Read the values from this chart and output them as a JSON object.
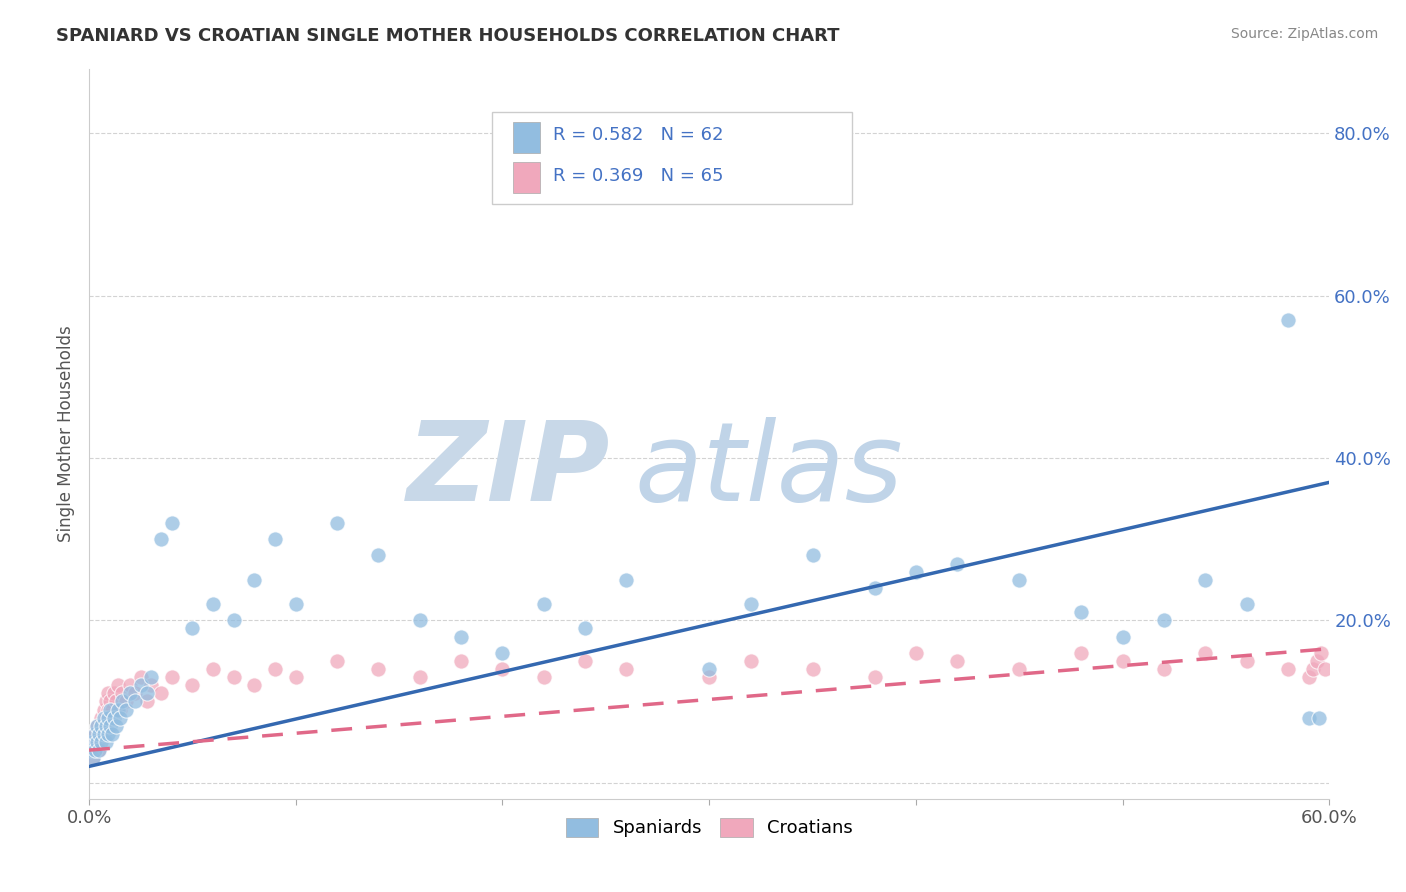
{
  "title": "SPANIARD VS CROATIAN SINGLE MOTHER HOUSEHOLDS CORRELATION CHART",
  "source_text": "Source: ZipAtlas.com",
  "ylabel": "Single Mother Households",
  "legend_entries": [
    {
      "label": "R = 0.582   N = 62",
      "color": "#aac4e0"
    },
    {
      "label": "R = 0.369   N = 65",
      "color": "#f4b0c0"
    }
  ],
  "spaniards_color": "#92bde0",
  "croatians_color": "#f0a8bc",
  "spaniard_line_color": "#3468b0",
  "croatian_line_color": "#e06888",
  "watermark_zip_color": "#c8d8e8",
  "watermark_atlas_color": "#c0d4e8",
  "watermark_text_zip": "ZIP",
  "watermark_text_atlas": "atlas",
  "spaniards_x": [
    0.001,
    0.002,
    0.002,
    0.003,
    0.003,
    0.004,
    0.004,
    0.005,
    0.005,
    0.006,
    0.006,
    0.007,
    0.007,
    0.008,
    0.008,
    0.009,
    0.009,
    0.01,
    0.01,
    0.011,
    0.012,
    0.013,
    0.014,
    0.015,
    0.016,
    0.018,
    0.02,
    0.022,
    0.025,
    0.028,
    0.03,
    0.035,
    0.04,
    0.05,
    0.06,
    0.07,
    0.08,
    0.09,
    0.1,
    0.12,
    0.14,
    0.16,
    0.18,
    0.2,
    0.22,
    0.24,
    0.26,
    0.3,
    0.32,
    0.35,
    0.38,
    0.4,
    0.42,
    0.45,
    0.48,
    0.5,
    0.52,
    0.54,
    0.56,
    0.58,
    0.59,
    0.595
  ],
  "spaniards_y": [
    0.04,
    0.05,
    0.03,
    0.06,
    0.04,
    0.05,
    0.07,
    0.04,
    0.06,
    0.05,
    0.07,
    0.06,
    0.08,
    0.05,
    0.07,
    0.06,
    0.08,
    0.07,
    0.09,
    0.06,
    0.08,
    0.07,
    0.09,
    0.08,
    0.1,
    0.09,
    0.11,
    0.1,
    0.12,
    0.11,
    0.13,
    0.3,
    0.32,
    0.19,
    0.22,
    0.2,
    0.25,
    0.3,
    0.22,
    0.32,
    0.28,
    0.2,
    0.18,
    0.16,
    0.22,
    0.19,
    0.25,
    0.14,
    0.22,
    0.28,
    0.24,
    0.26,
    0.27,
    0.25,
    0.21,
    0.18,
    0.2,
    0.25,
    0.22,
    0.57,
    0.08,
    0.08
  ],
  "croatians_x": [
    0.001,
    0.002,
    0.002,
    0.003,
    0.003,
    0.004,
    0.004,
    0.005,
    0.005,
    0.006,
    0.006,
    0.007,
    0.007,
    0.008,
    0.008,
    0.009,
    0.009,
    0.01,
    0.01,
    0.011,
    0.012,
    0.013,
    0.014,
    0.015,
    0.016,
    0.018,
    0.02,
    0.022,
    0.025,
    0.028,
    0.03,
    0.035,
    0.04,
    0.05,
    0.06,
    0.07,
    0.08,
    0.09,
    0.1,
    0.12,
    0.14,
    0.16,
    0.18,
    0.2,
    0.22,
    0.24,
    0.26,
    0.3,
    0.32,
    0.35,
    0.38,
    0.4,
    0.42,
    0.45,
    0.48,
    0.5,
    0.52,
    0.54,
    0.56,
    0.58,
    0.59,
    0.592,
    0.594,
    0.596,
    0.598
  ],
  "croatians_y": [
    0.04,
    0.05,
    0.03,
    0.06,
    0.04,
    0.05,
    0.07,
    0.04,
    0.06,
    0.07,
    0.08,
    0.09,
    0.07,
    0.1,
    0.08,
    0.09,
    0.11,
    0.1,
    0.08,
    0.09,
    0.11,
    0.1,
    0.12,
    0.09,
    0.11,
    0.1,
    0.12,
    0.11,
    0.13,
    0.1,
    0.12,
    0.11,
    0.13,
    0.12,
    0.14,
    0.13,
    0.12,
    0.14,
    0.13,
    0.15,
    0.14,
    0.13,
    0.15,
    0.14,
    0.13,
    0.15,
    0.14,
    0.13,
    0.15,
    0.14,
    0.13,
    0.16,
    0.15,
    0.14,
    0.16,
    0.15,
    0.14,
    0.16,
    0.15,
    0.14,
    0.13,
    0.14,
    0.15,
    0.16,
    0.14
  ],
  "xlim": [
    0.0,
    0.6
  ],
  "ylim": [
    -0.02,
    0.88
  ],
  "figsize": [
    14.06,
    8.92
  ],
  "dpi": 100,
  "spaniard_line_start_y": 0.02,
  "spaniard_line_end_y": 0.37,
  "croatian_line_start_y": 0.04,
  "croatian_line_end_y": 0.165
}
